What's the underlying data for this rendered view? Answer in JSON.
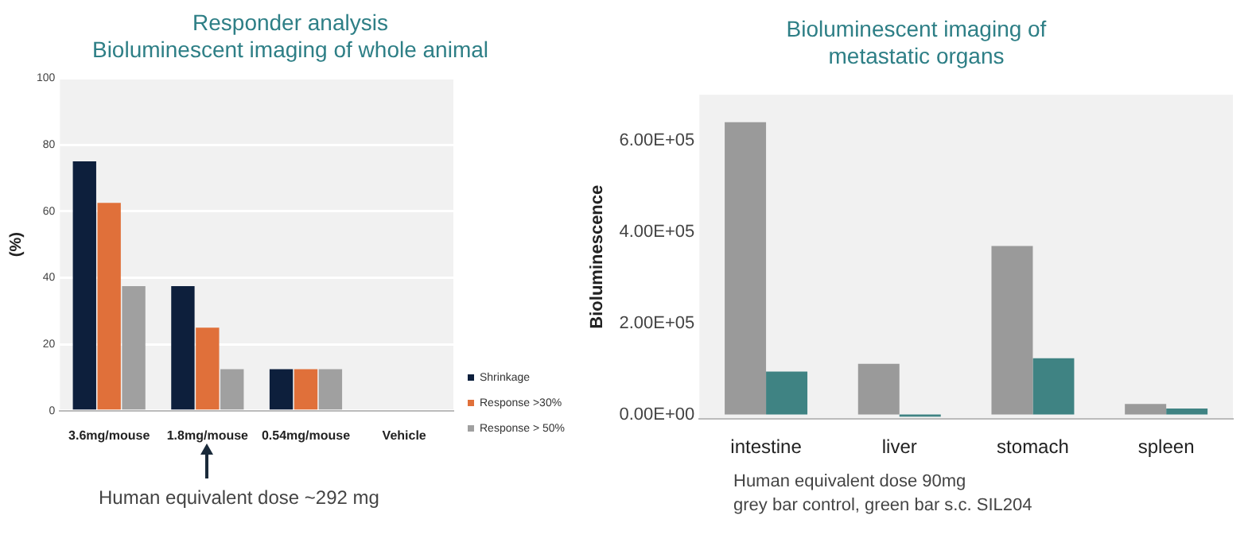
{
  "chart_data": [
    {
      "type": "bar",
      "title": "Responder analysis\nBioluminescent imaging of whole animal",
      "ylabel": "(%)",
      "categories": [
        "3.6mg/mouse",
        "1.8mg/mouse",
        "0.54mg/mouse",
        "Vehicle"
      ],
      "series": [
        {
          "name": "Shrinkage",
          "color": "#0d1f3c",
          "values": [
            75,
            37.5,
            12.5,
            0
          ]
        },
        {
          "name": "Response >30%",
          "color": "#e0703a",
          "values": [
            62.5,
            25,
            12.5,
            0
          ]
        },
        {
          "name": "Response > 50%",
          "color": "#a0a0a0",
          "values": [
            37.5,
            12.5,
            12.5,
            0
          ]
        }
      ],
      "ylim": [
        0,
        100
      ],
      "yticks": [
        0,
        20,
        40,
        60,
        80,
        100
      ],
      "grid": "y",
      "legend": "right",
      "annotations": [
        "Human equivalent dose ~292 mg"
      ]
    },
    {
      "type": "bar",
      "title": "Bioluminescent imaging of\nmetastatic organs",
      "ylabel": "Bioluminescence",
      "categories": [
        "intestine",
        "liver",
        "stomach",
        "spleen"
      ],
      "series": [
        {
          "color": "#9a9a9a",
          "values": [
            640000,
            111000,
            369000,
            23000
          ]
        },
        {
          "color": "#3f8383",
          "values": [
            94000,
            -5000,
            123000,
            13000
          ]
        }
      ],
      "ylim": [
        -10000,
        700000
      ],
      "yticks": [
        {
          "value": 0,
          "label": "0.00E+00"
        },
        {
          "value": 200000,
          "label": "2.00E+05"
        },
        {
          "value": 400000,
          "label": "4.00E+05"
        },
        {
          "value": 600000,
          "label": "6.00E+05"
        }
      ],
      "grid": false,
      "legend": false,
      "annotations": [
        "Human equivalent dose 90mg",
        "grey bar control, green bar s.c. SIL204"
      ]
    }
  ]
}
